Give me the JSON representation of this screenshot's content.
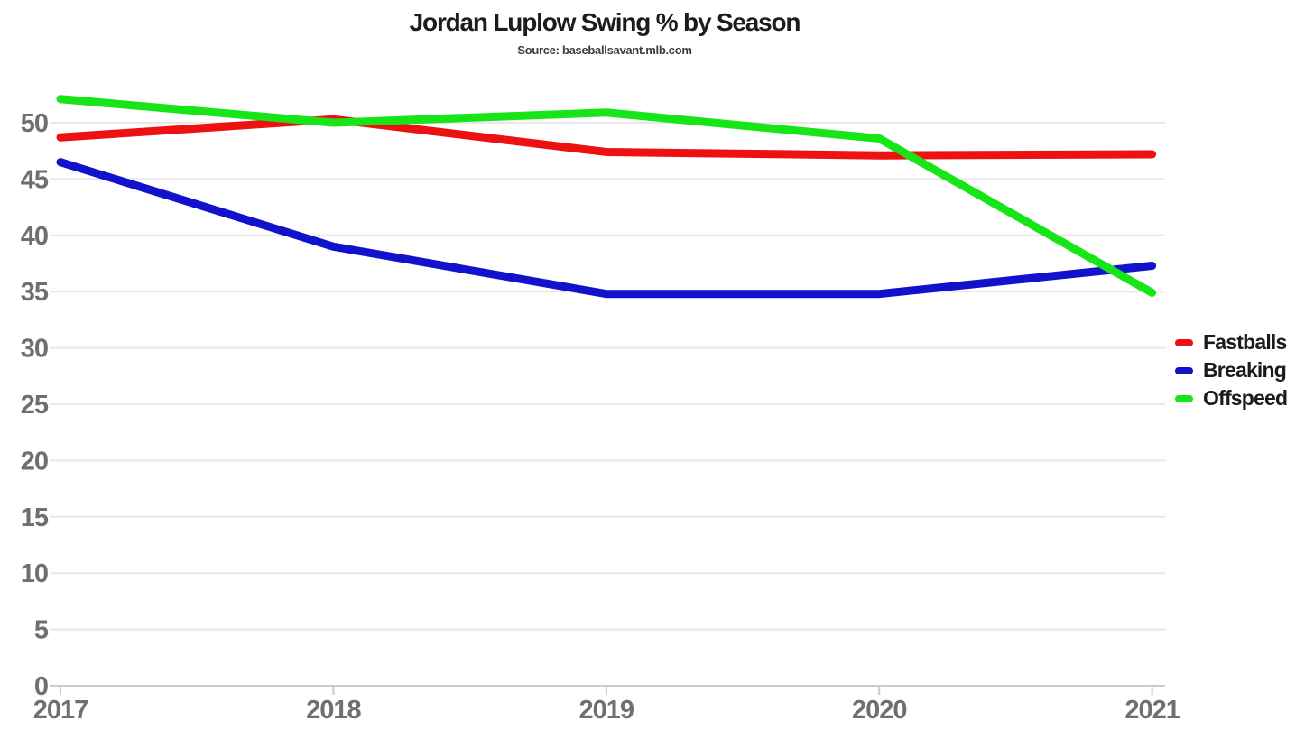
{
  "chart_data": {
    "type": "line",
    "title": "Jordan Luplow Swing % by Season",
    "subtitle": "Source: baseballsavant.mlb.com",
    "xlabel": "",
    "ylabel": "",
    "x": [
      2017,
      2018,
      2019,
      2020,
      2021
    ],
    "x_tick_labels": [
      "2017",
      "2018",
      "2019",
      "2020",
      "2021"
    ],
    "y_ticks": [
      0,
      5,
      10,
      15,
      20,
      25,
      30,
      35,
      40,
      45,
      50
    ],
    "ylim": [
      0,
      54
    ],
    "grid": true,
    "legend_position": "right",
    "series": [
      {
        "name": "Fastballs",
        "color": "#ee1111",
        "values": [
          48.7,
          50.3,
          47.4,
          47.1,
          47.2
        ]
      },
      {
        "name": "Breaking",
        "color": "#1212cd",
        "values": [
          46.5,
          39.0,
          34.8,
          34.8,
          37.3
        ]
      },
      {
        "name": "Offspeed",
        "color": "#17e517",
        "values": [
          52.1,
          50.0,
          50.9,
          48.6,
          34.9
        ]
      }
    ],
    "axis_colors": {
      "grid_line": "#e8e8e8",
      "axis_line": "#c6ccd2",
      "tick_label": "#6f6f6f"
    }
  }
}
